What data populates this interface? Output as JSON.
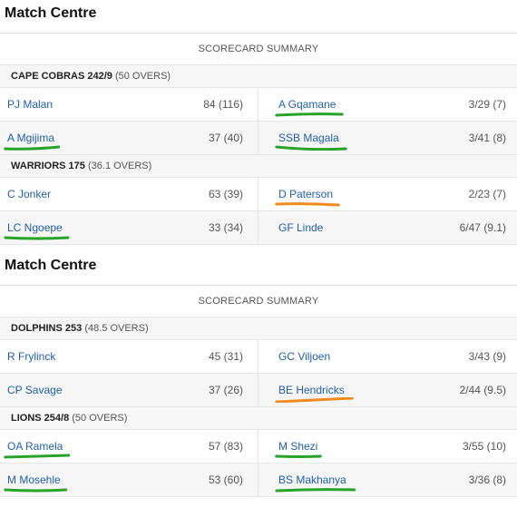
{
  "blocks": [
    {
      "title": "Match Centre",
      "summary_label": "SCORECARD SUMMARY",
      "team1": {
        "name": "CAPE COBRAS 242/9",
        "overs": "(50 OVERS)"
      },
      "team1_rows": [
        {
          "bat": "PJ Malan",
          "bat_stat": "84 (116)",
          "bowl": "A Gqamane",
          "bowl_stat": "3/29 (7)"
        },
        {
          "bat": "A Mgijima",
          "bat_stat": "37 (40)",
          "bowl": "SSB Magala",
          "bowl_stat": "3/41 (8)"
        }
      ],
      "team2": {
        "name": "WARRIORS 175",
        "overs": "(36.1 OVERS)"
      },
      "team2_rows": [
        {
          "bat": "C Jonker",
          "bat_stat": "63 (39)",
          "bowl": "D Paterson",
          "bowl_stat": "2/23 (7)"
        },
        {
          "bat": "LC Ngoepe",
          "bat_stat": "33 (34)",
          "bowl": "GF Linde",
          "bowl_stat": "6/47 (9.1)"
        }
      ]
    },
    {
      "title": "Match Centre",
      "summary_label": "SCORECARD SUMMARY",
      "team1": {
        "name": "DOLPHINS 253",
        "overs": "(48.5 OVERS)"
      },
      "team1_rows": [
        {
          "bat": "R Frylinck",
          "bat_stat": "45 (31)",
          "bowl": "GC Viljoen",
          "bowl_stat": "3/43 (9)"
        },
        {
          "bat": "CP Savage",
          "bat_stat": "37 (26)",
          "bowl": "BE Hendricks",
          "bowl_stat": "2/44 (9.5)"
        }
      ],
      "team2": {
        "name": "LIONS 254/8",
        "overs": "(50 OVERS)"
      },
      "team2_rows": [
        {
          "bat": "OA Ramela",
          "bat_stat": "57 (83)",
          "bowl": "M Shezi",
          "bowl_stat": "3/55 (10)"
        },
        {
          "bat": "M Mosehle",
          "bat_stat": "53 (60)",
          "bowl": "BS Makhanya",
          "bowl_stat": "3/36 (8)"
        }
      ]
    }
  ],
  "colors": {
    "link": "#1f5fb4",
    "green_mark": "#27a327",
    "orange_mark": "#f08a1c"
  }
}
